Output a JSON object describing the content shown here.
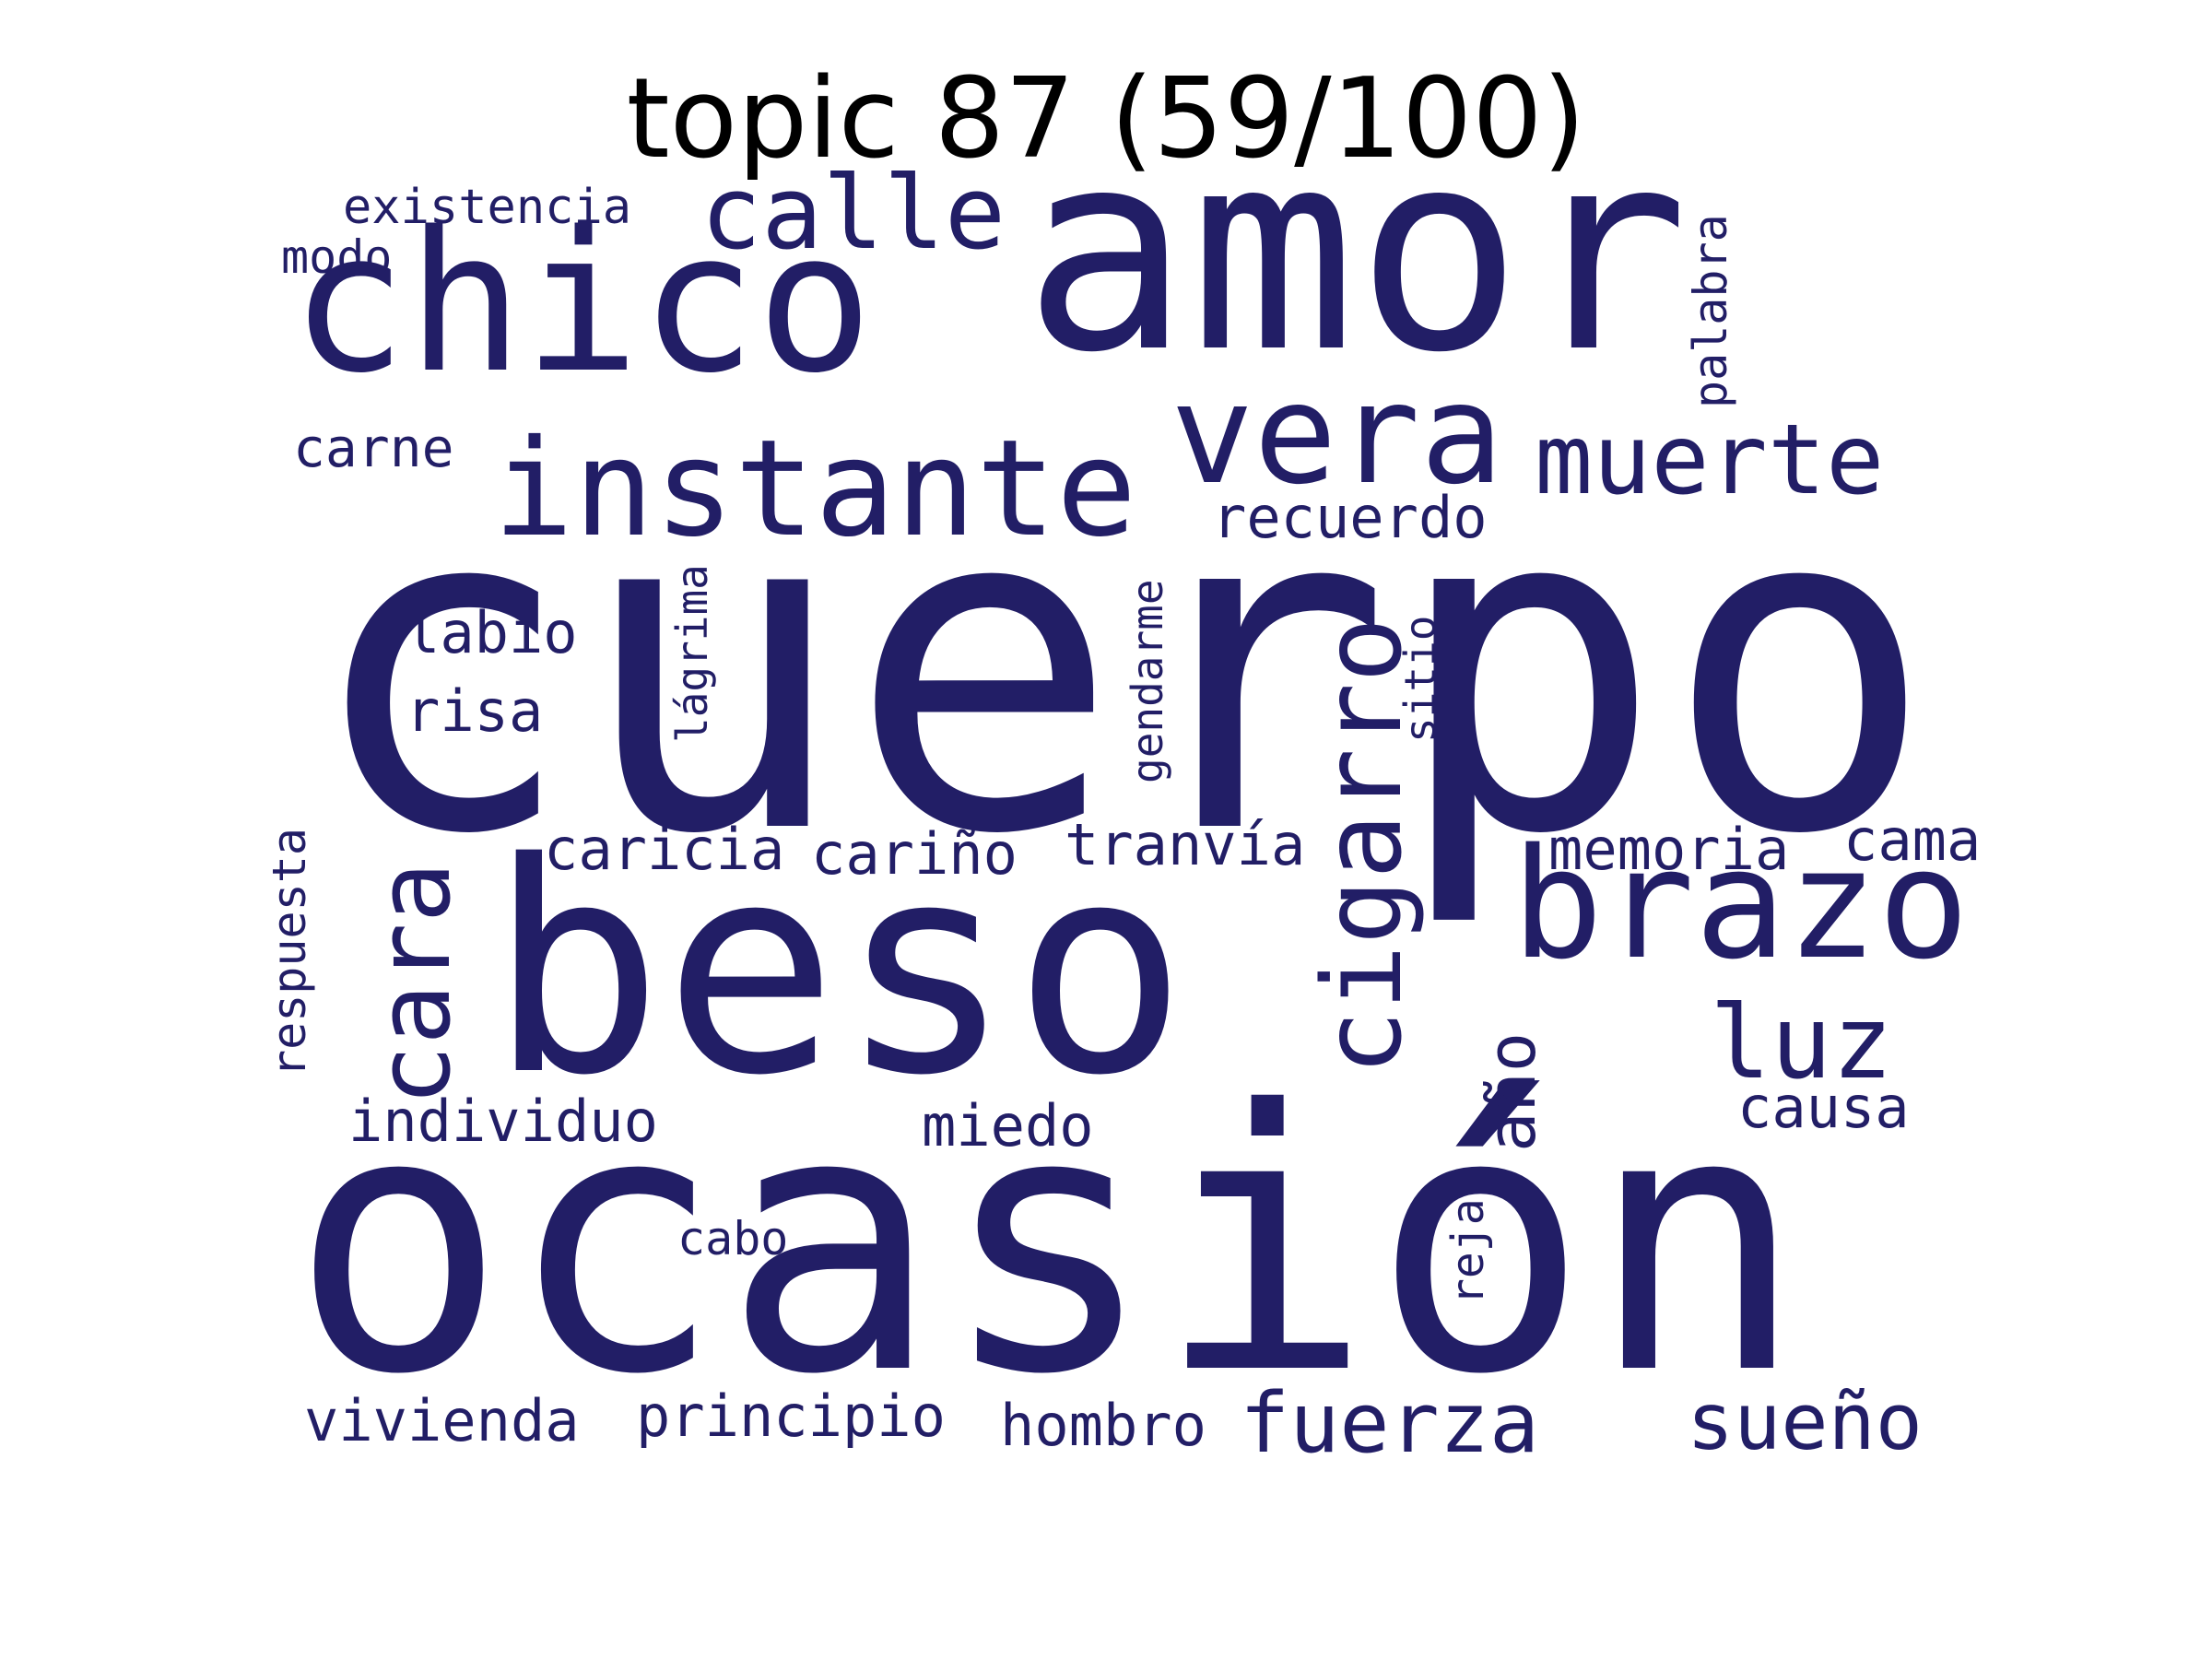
{
  "title": "topic 87 (59/100)",
  "word_color": "#221e66",
  "words": [
    {
      "text": "cuerpo",
      "orientation": "horizontal"
    },
    {
      "text": "ocasión",
      "orientation": "horizontal"
    },
    {
      "text": "amor",
      "orientation": "horizontal"
    },
    {
      "text": "beso",
      "orientation": "horizontal"
    },
    {
      "text": "chico",
      "orientation": "horizontal"
    },
    {
      "text": "vera",
      "orientation": "horizontal"
    },
    {
      "text": "instante",
      "orientation": "horizontal"
    },
    {
      "text": "brazo",
      "orientation": "horizontal"
    },
    {
      "text": "muerte",
      "orientation": "horizontal"
    },
    {
      "text": "calle",
      "orientation": "horizontal"
    },
    {
      "text": "luz",
      "orientation": "horizontal"
    },
    {
      "text": "cigarro",
      "orientation": "vertical"
    },
    {
      "text": "cara",
      "orientation": "vertical"
    },
    {
      "text": "sueño",
      "orientation": "horizontal"
    },
    {
      "text": "fuerza",
      "orientation": "horizontal"
    },
    {
      "text": "año",
      "orientation": "vertical"
    },
    {
      "text": "recuerdo",
      "orientation": "horizontal"
    },
    {
      "text": "labio",
      "orientation": "horizontal"
    },
    {
      "text": "risa",
      "orientation": "horizontal"
    },
    {
      "text": "carne",
      "orientation": "horizontal"
    },
    {
      "text": "caricia",
      "orientation": "horizontal"
    },
    {
      "text": "cariño",
      "orientation": "horizontal"
    },
    {
      "text": "tranvía",
      "orientation": "horizontal"
    },
    {
      "text": "memoria",
      "orientation": "horizontal"
    },
    {
      "text": "cama",
      "orientation": "horizontal"
    },
    {
      "text": "causa",
      "orientation": "horizontal"
    },
    {
      "text": "individuo",
      "orientation": "horizontal"
    },
    {
      "text": "miedo",
      "orientation": "horizontal"
    },
    {
      "text": "vivienda",
      "orientation": "horizontal"
    },
    {
      "text": "principio",
      "orientation": "horizontal"
    },
    {
      "text": "hombro",
      "orientation": "horizontal"
    },
    {
      "text": "existencia",
      "orientation": "horizontal"
    },
    {
      "text": "modo",
      "orientation": "horizontal"
    },
    {
      "text": "palabra",
      "orientation": "vertical"
    },
    {
      "text": "lágrima",
      "orientation": "vertical"
    },
    {
      "text": "gendarme",
      "orientation": "vertical"
    },
    {
      "text": "sitio",
      "orientation": "vertical"
    },
    {
      "text": "respuesta",
      "orientation": "vertical"
    },
    {
      "text": "reja",
      "orientation": "vertical"
    },
    {
      "text": "cabo",
      "orientation": "horizontal"
    }
  ]
}
